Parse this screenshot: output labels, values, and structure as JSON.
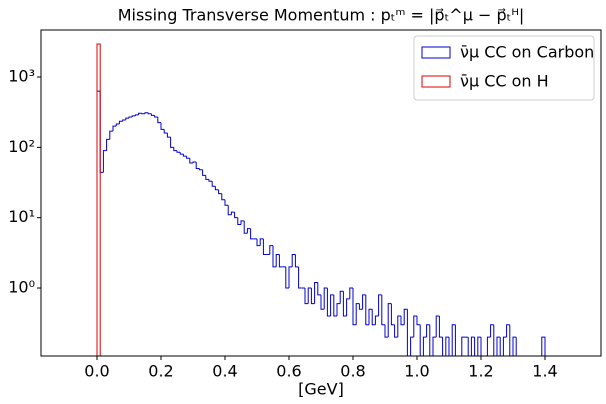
{
  "chart_data": {
    "type": "histogram",
    "title": "Missing Transverse Momentum : pₜᵐ = |p⃗ₜ^μ − p⃗ₜᴴ|",
    "xlabel": "[GeV]",
    "log_y": true,
    "legend": "upper right",
    "xlim": [
      -0.175,
      1.575
    ],
    "ylim": [
      0.108,
      4660
    ],
    "xticks": [
      {
        "value": 0,
        "label": "0.0"
      },
      0.2,
      0.4,
      0.6,
      0.8,
      {
        "value": 1,
        "label": "1.0"
      },
      1.2,
      1.4
    ],
    "yticks": [
      {
        "value": 1,
        "label": "10⁰"
      },
      {
        "value": 10,
        "label": "10¹"
      },
      {
        "value": 100,
        "label": "10²"
      },
      {
        "value": 1000,
        "label": "10³"
      }
    ],
    "series": [
      {
        "name": "ν̄μ CC on Carbon",
        "color": "#0000cc",
        "bins": [
          0,
          0.01,
          0.02,
          0.03,
          0.04,
          0.05,
          0.06,
          0.07,
          0.08,
          0.09,
          0.1,
          0.11,
          0.12,
          0.13,
          0.14,
          0.15,
          0.16,
          0.17,
          0.18,
          0.19,
          0.2,
          0.21,
          0.22,
          0.23,
          0.24,
          0.25,
          0.26,
          0.27,
          0.28,
          0.29,
          0.3,
          0.31,
          0.32,
          0.33,
          0.34,
          0.35,
          0.36,
          0.37,
          0.38,
          0.39,
          0.4,
          0.41,
          0.42,
          0.43,
          0.44,
          0.45,
          0.46,
          0.47,
          0.48,
          0.49,
          0.5,
          0.51,
          0.52,
          0.53,
          0.54,
          0.55,
          0.56,
          0.57,
          0.58,
          0.59,
          0.6,
          0.61,
          0.62,
          0.63,
          0.64,
          0.65,
          0.66,
          0.67,
          0.68,
          0.69,
          0.7,
          0.71,
          0.72,
          0.73,
          0.74,
          0.75,
          0.76,
          0.77,
          0.78,
          0.79,
          0.8,
          0.81,
          0.82,
          0.83,
          0.84,
          0.85,
          0.86,
          0.87,
          0.88,
          0.89,
          0.9,
          0.91,
          0.92,
          0.93,
          0.94,
          0.95,
          0.96,
          0.97,
          0.98,
          0.99,
          1,
          1.01,
          1.02,
          1.03,
          1.04,
          1.05,
          1.06,
          1.07,
          1.08,
          1.09,
          1.1,
          1.11,
          1.12,
          1.13,
          1.14,
          1.15,
          1.16,
          1.17,
          1.18,
          1.19,
          1.2,
          1.21,
          1.22,
          1.23,
          1.24,
          1.25,
          1.26,
          1.27,
          1.28,
          1.29,
          1.3,
          1.31,
          1.32,
          1.33,
          1.34,
          1.35,
          1.36,
          1.37,
          1.38,
          1.39,
          1.4
        ],
        "values": [
          630,
          44,
          90,
          130,
          170,
          200,
          215,
          235,
          245,
          260,
          270,
          280,
          290,
          305,
          300,
          310,
          300,
          285,
          270,
          225,
          180,
          160,
          140,
          100,
          90,
          85,
          80,
          75,
          70,
          60,
          62,
          50,
          48,
          40,
          35,
          33,
          28,
          25,
          22,
          18,
          15,
          11,
          12,
          10,
          8,
          9,
          6,
          7,
          5,
          5,
          4,
          5,
          3,
          3,
          4,
          2,
          3,
          2,
          2,
          1,
          2,
          3,
          2,
          1,
          1,
          0.6,
          1,
          0.6,
          1.2,
          0.8,
          0.5,
          1,
          0.4,
          0.8,
          0.4,
          0.6,
          0.9,
          0.4,
          0.7,
          1,
          0.3,
          0.6,
          0.5,
          0.8,
          0.3,
          0.5,
          0.3,
          0.4,
          0.8,
          0.3,
          0.2,
          0.6,
          0.3,
          0.2,
          0.4,
          0.3,
          0.5,
          0,
          0.2,
          0.4,
          0.3,
          0,
          0.2,
          0.3,
          0,
          0.2,
          0.4,
          0.2,
          0,
          0.2,
          0,
          0.3,
          0,
          0,
          0.2,
          0.2,
          0,
          0.2,
          0,
          0.2,
          0,
          0,
          0.2,
          0.3,
          0,
          0.2,
          0,
          0.2,
          0.3,
          0,
          0.2,
          0,
          0,
          0,
          0,
          0,
          0,
          0,
          0,
          0.2
        ]
      },
      {
        "name": "ν̄μ CC on H",
        "color": "#dd0000",
        "bins": [
          0,
          0.01
        ],
        "values": [
          2950
        ]
      }
    ]
  }
}
